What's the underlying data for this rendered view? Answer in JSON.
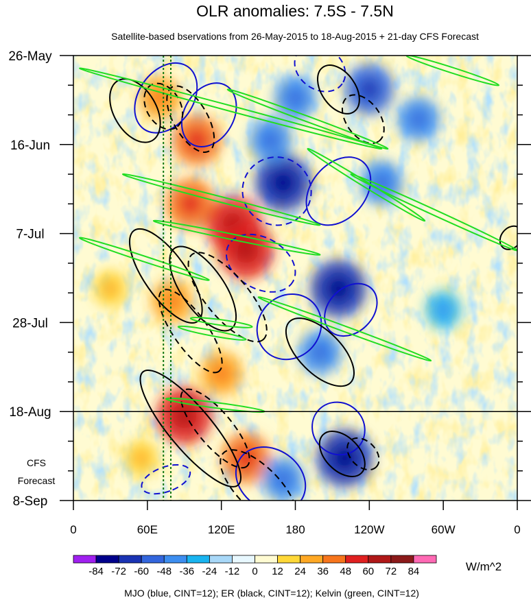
{
  "chart_data": {
    "type": "heatmap",
    "title": "OLR anomalies: 7.5S - 7.5N",
    "subtitle": "Satellite-based bservations from 26-May-2015 to 18-Aug-2015 + 21-day CFS Forecast",
    "x_ticks": [
      "0",
      "60E",
      "120E",
      "180",
      "120W",
      "60W",
      "0"
    ],
    "x_tick_lon": [
      0,
      60,
      120,
      180,
      240,
      300,
      360
    ],
    "y_ticks": [
      "26-May",
      "16-Jun",
      "7-Jul",
      "28-Jul",
      "18-Aug",
      "8-Sep"
    ],
    "y_tick_days": [
      0,
      21,
      42,
      63,
      84,
      105
    ],
    "xlim": [
      0,
      360
    ],
    "ylim_days": [
      0,
      105
    ],
    "observation_end_label": "18-Aug",
    "observation_end_day": 84,
    "forecast_label_line1": "CFS",
    "forecast_label_line2": "Forecast",
    "reference_lon": [
      73,
      79
    ],
    "colorbar": {
      "labels": [
        "-84",
        "-72",
        "-60",
        "-48",
        "-36",
        "-24",
        "-12",
        "0",
        "12",
        "24",
        "36",
        "48",
        "60",
        "72",
        "84"
      ],
      "colors": [
        "#a020f0",
        "#00008b",
        "#1a33b3",
        "#3366dd",
        "#3d8ef0",
        "#19b4f0",
        "#a8d8f8",
        "#e8f8ff",
        "#fffbd2",
        "#ffd838",
        "#ffa824",
        "#f7751c",
        "#e02020",
        "#b01818",
        "#8b1a1a",
        "#ff69b4"
      ],
      "units": "W/m^2"
    },
    "contour_legend": "MJO (blue, CINT=12); ER (black, CINT=12); Kelvin (green, CINT=12)",
    "contour_colors": {
      "mjo": "#1010d0",
      "er": "#000000",
      "kelvin": "#22dd22",
      "reference": "#117711"
    },
    "anomaly_features": [
      {
        "lon": 100,
        "day": 20,
        "value": 48
      },
      {
        "lon": 95,
        "day": 35,
        "value": 48
      },
      {
        "lon": 130,
        "day": 40,
        "value": 60
      },
      {
        "lon": 140,
        "day": 46,
        "value": 60
      },
      {
        "lon": 80,
        "day": 58,
        "value": 36
      },
      {
        "lon": 90,
        "day": 85,
        "value": 60
      },
      {
        "lon": 120,
        "day": 75,
        "value": 36
      },
      {
        "lon": 70,
        "day": 10,
        "value": 36
      },
      {
        "lon": 30,
        "day": 55,
        "value": 24
      },
      {
        "lon": 140,
        "day": 95,
        "value": 48
      },
      {
        "lon": 55,
        "day": 95,
        "value": 24
      },
      {
        "lon": 180,
        "day": 10,
        "value": -36
      },
      {
        "lon": 170,
        "day": 30,
        "value": -60
      },
      {
        "lon": 215,
        "day": 55,
        "value": -60
      },
      {
        "lon": 240,
        "day": 8,
        "value": -48
      },
      {
        "lon": 160,
        "day": 20,
        "value": -36
      },
      {
        "lon": 220,
        "day": 95,
        "value": -60
      },
      {
        "lon": 170,
        "day": 100,
        "value": -36
      },
      {
        "lon": 250,
        "day": 30,
        "value": -36
      },
      {
        "lon": 280,
        "day": 15,
        "value": -36
      },
      {
        "lon": 300,
        "day": 60,
        "value": -24
      },
      {
        "lon": 200,
        "day": 70,
        "value": -36
      }
    ],
    "mjo_contours": [
      {
        "lon": 75,
        "day": 10,
        "rlon": 22,
        "rday": 9,
        "angle": 35,
        "dashed": false
      },
      {
        "lon": 110,
        "day": 14,
        "rlon": 20,
        "rday": 8,
        "angle": 30,
        "dashed": false
      },
      {
        "lon": 165,
        "day": 32,
        "rlon": 28,
        "rday": 8,
        "angle": 30,
        "dashed": true
      },
      {
        "lon": 215,
        "day": 32,
        "rlon": 22,
        "rday": 9,
        "angle": 40,
        "dashed": false
      },
      {
        "lon": 152,
        "day": 49,
        "rlon": 30,
        "rday": 6,
        "angle": 30,
        "dashed": true
      },
      {
        "lon": 175,
        "day": 64,
        "rlon": 25,
        "rday": 8,
        "angle": 40,
        "dashed": false
      },
      {
        "lon": 225,
        "day": 60,
        "rlon": 18,
        "rday": 7,
        "angle": 45,
        "dashed": false
      },
      {
        "lon": 200,
        "day": 3,
        "rlon": 22,
        "rday": 5,
        "angle": 35,
        "dashed": true
      },
      {
        "lon": 215,
        "day": 88,
        "rlon": 22,
        "rday": 6,
        "angle": 45,
        "dashed": false
      },
      {
        "lon": 160,
        "day": 100,
        "rlon": 30,
        "rday": 7,
        "angle": 35,
        "dashed": false
      },
      {
        "lon": 75,
        "day": 100,
        "rlon": 10,
        "rday": 6,
        "angle": 70,
        "dashed": true
      }
    ],
    "er_contours": [
      {
        "lon": 50,
        "day": 13,
        "rlon": 28,
        "rday": 5,
        "angle": 60,
        "dashed": false
      },
      {
        "lon": 73,
        "day": 12,
        "rlon": 20,
        "rday": 4,
        "angle": 60,
        "dashed": true
      },
      {
        "lon": 95,
        "day": 15,
        "rlon": 30,
        "rday": 4,
        "angle": 60,
        "dashed": true
      },
      {
        "lon": 75,
        "day": 52,
        "rlon": 45,
        "rday": 5,
        "angle": 55,
        "dashed": false
      },
      {
        "lon": 105,
        "day": 55,
        "rlon": 40,
        "rday": 5,
        "angle": 55,
        "dashed": false
      },
      {
        "lon": 125,
        "day": 57,
        "rlon": 45,
        "rday": 5,
        "angle": 50,
        "dashed": true
      },
      {
        "lon": 95,
        "day": 65,
        "rlon": 40,
        "rday": 4,
        "angle": 55,
        "dashed": true
      },
      {
        "lon": 95,
        "day": 88,
        "rlon": 60,
        "rday": 5,
        "angle": 50,
        "dashed": false
      },
      {
        "lon": 115,
        "day": 88,
        "rlon": 40,
        "rday": 4,
        "angle": 50,
        "dashed": true
      },
      {
        "lon": 200,
        "day": 70,
        "rlon": 35,
        "rday": 5,
        "angle": 45,
        "dashed": false
      },
      {
        "lon": 215,
        "day": 8,
        "rlon": 22,
        "rday": 4,
        "angle": 55,
        "dashed": false
      },
      {
        "lon": 235,
        "day": 15,
        "rlon": 22,
        "rday": 4,
        "angle": 55,
        "dashed": true
      },
      {
        "lon": 150,
        "day": 102,
        "rlon": 40,
        "rday": 5,
        "angle": 45,
        "dashed": true
      },
      {
        "lon": 218,
        "day": 94,
        "rlon": 22,
        "rday": 4,
        "angle": 45,
        "dashed": false
      },
      {
        "lon": 235,
        "day": 94,
        "rlon": 15,
        "rday": 3,
        "angle": 45,
        "dashed": true
      },
      {
        "lon": 355,
        "day": 43,
        "rlon": 8,
        "rday": 3,
        "angle": 40,
        "dashed": false
      }
    ],
    "kelvin_contours": [
      {
        "lon1": 5,
        "day1": 3,
        "lon2": 250,
        "day2": 22
      },
      {
        "lon1": 125,
        "day1": 8,
        "lon2": 255,
        "day2": 22
      },
      {
        "lon1": 190,
        "day1": 22,
        "lon2": 285,
        "day2": 39
      },
      {
        "lon1": 40,
        "day1": 28,
        "lon2": 200,
        "day2": 40
      },
      {
        "lon1": 65,
        "day1": 39,
        "lon2": 200,
        "day2": 47
      },
      {
        "lon1": 5,
        "day1": 43,
        "lon2": 110,
        "day2": 53
      },
      {
        "lon1": 270,
        "day1": 0,
        "lon2": 345,
        "day2": 7
      },
      {
        "lon1": 95,
        "day1": 62,
        "lon2": 145,
        "day2": 64
      },
      {
        "lon1": 150,
        "day1": 57,
        "lon2": 290,
        "day2": 72
      },
      {
        "lon1": 85,
        "day1": 64,
        "lon2": 140,
        "day2": 67
      },
      {
        "lon1": 75,
        "day1": 81,
        "lon2": 155,
        "day2": 84
      },
      {
        "lon1": 225,
        "day1": 28,
        "lon2": 360,
        "day2": 46
      }
    ]
  }
}
